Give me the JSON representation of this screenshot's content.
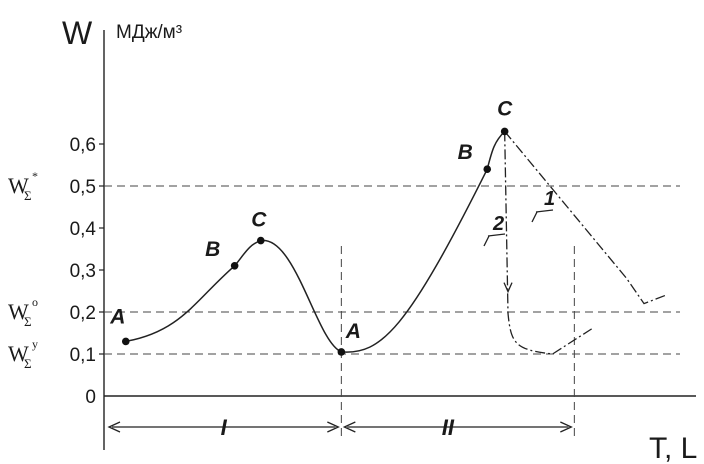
{
  "chart_data": {
    "type": "line",
    "ylabel": "W",
    "yunit": "МДж/м³",
    "xlabel": "T, L",
    "ylim": [
      0,
      0.75
    ],
    "yticks": [
      {
        "value": 0,
        "label": "0"
      },
      {
        "value": 0.1,
        "label": "0,1"
      },
      {
        "value": 0.2,
        "label": "0,2"
      },
      {
        "value": 0.3,
        "label": "0,3"
      },
      {
        "value": 0.4,
        "label": "0,4"
      },
      {
        "value": 0.5,
        "label": "0,5"
      },
      {
        "value": 0.6,
        "label": "0,6"
      }
    ],
    "threshold_levels": [
      {
        "value": 0.5,
        "symbol": "W",
        "sub": "Σ",
        "sup": "*"
      },
      {
        "value": 0.2,
        "symbol": "W",
        "sub": "Σ",
        "sup": "o"
      },
      {
        "value": 0.1,
        "symbol": "W",
        "sub": "Σ",
        "sup": "y"
      }
    ],
    "stages": [
      {
        "label": "I"
      },
      {
        "label": "II"
      }
    ],
    "stage1_curve": [
      {
        "x": 0.5,
        "y": 0.13,
        "label": "A"
      },
      {
        "x": 3.0,
        "y": 0.31,
        "label": "B"
      },
      {
        "x": 3.6,
        "y": 0.37,
        "label": "C"
      },
      {
        "x": 5.45,
        "y": 0.105,
        "label": "A"
      }
    ],
    "stage2_curve": [
      {
        "x": 5.45,
        "y": 0.105
      },
      {
        "x": 8.8,
        "y": 0.54,
        "label": "B"
      },
      {
        "x": 9.2,
        "y": 0.63,
        "label": "C"
      }
    ],
    "branches": [
      {
        "name": "1",
        "points": [
          [
            9.2,
            0.63
          ],
          [
            12.0,
            0.28
          ],
          [
            12.4,
            0.22
          ],
          [
            12.9,
            0.24
          ]
        ]
      },
      {
        "name": "2",
        "points": [
          [
            9.2,
            0.63
          ],
          [
            9.3,
            0.22
          ],
          [
            9.55,
            0.11
          ],
          [
            10.3,
            0.1
          ],
          [
            11.2,
            0.16
          ]
        ]
      }
    ]
  }
}
